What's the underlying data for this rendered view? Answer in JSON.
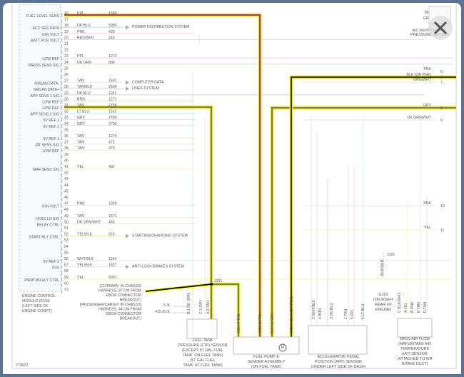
{
  "figure_id": "279622",
  "ecm": {
    "caption": [
      "ENGINE CONTROL",
      "MODULE (ECM)",
      "(LEFT SIDE OF",
      "ENGINE COMPT)"
    ]
  },
  "pins": [
    {
      "n": "16",
      "label": "FUEL LEVEL SENS",
      "color": "PPL",
      "circuit": "1589"
    },
    {
      "n": "17"
    },
    {
      "n": "18",
      "label": "ACC SER DATA",
      "color": "DK BLU",
      "circuit": "5985",
      "to": "POWER DISTRIBUTION SYSTEM"
    },
    {
      "n": "19",
      "label": "IGN VOLT",
      "color": "PNK",
      "circuit": "439"
    },
    {
      "n": "20",
      "label": "BATT POS VOLT",
      "color": "RED/WHT",
      "circuit": "440"
    },
    {
      "n": "21"
    },
    {
      "n": "22"
    },
    {
      "n": "23",
      "label": "LOW REF",
      "color": "PPL",
      "circuit": "1272"
    },
    {
      "n": "24",
      "label": "PRESS SENS SIG",
      "color": "DK GRN",
      "circuit": "890"
    },
    {
      "n": "25"
    },
    {
      "n": "26"
    },
    {
      "n": "27",
      "label": "GMLAN DATA-",
      "color": "TAN",
      "circuit": "2501",
      "to": "COMPUTER DATA"
    },
    {
      "n": "28",
      "label": "GMLAN DATA+",
      "color": "TAN/BLK",
      "circuit": "2500",
      "to": "LINES SYSTEM"
    },
    {
      "n": "29",
      "label": "APP SENS 1 SIG",
      "color": "DK BLU",
      "circuit": "1161"
    },
    {
      "n": "30",
      "label": "LOW REF",
      "color": "BRN",
      "circuit": "1271"
    },
    {
      "n": "31",
      "label": "LOW REF",
      "color": "TAN",
      "circuit": "2759"
    },
    {
      "n": "32",
      "label": "APP SENS 2 SIG",
      "color": "LT BLU",
      "circuit": "1162"
    },
    {
      "n": "33",
      "label": "5V REF 1",
      "color": "GRY",
      "circuit": "2709"
    },
    {
      "n": "34",
      "label": "5V REF 1",
      "color": "GRY",
      "circuit": "2700"
    },
    {
      "n": "35"
    },
    {
      "n": "36",
      "label": "5V REF 1",
      "color": "TAN",
      "circuit": "1274"
    },
    {
      "n": "37",
      "label": "IAT SENS SIG",
      "color": "TAN",
      "circuit": "472"
    },
    {
      "n": "38",
      "label": "LOW REF",
      "color": "TAN",
      "circuit": "470"
    },
    {
      "n": "39"
    },
    {
      "n": "40"
    },
    {
      "n": "41",
      "label": "MAF SENS SIG",
      "color": "YEL",
      "circuit": "492"
    },
    {
      "n": "42"
    },
    {
      "n": "43"
    },
    {
      "n": "44"
    },
    {
      "n": "45"
    },
    {
      "n": "46"
    },
    {
      "n": "47",
      "label": "IGN VOLT",
      "color": "PNK",
      "circuit": "1339"
    },
    {
      "n": "48"
    },
    {
      "n": "49",
      "label": "HO2S LO SIG",
      "color": "TAN",
      "circuit": "1671"
    },
    {
      "n": "50",
      "label": "RELAY CTRL",
      "color": "DK GRN/WHT",
      "circuit": "465"
    },
    {
      "n": "51"
    },
    {
      "n": "52",
      "label": "START RLY CTRL",
      "color": "YEL/BLK",
      "circuit": "625",
      "to": "STARTING/CHARGING SYSTEM"
    },
    {
      "n": "53"
    },
    {
      "n": "54"
    },
    {
      "n": "55"
    },
    {
      "n": "56",
      "label": "5V REF 2",
      "color": "WHT/BLK",
      "circuit": "1164"
    },
    {
      "n": "57",
      "label": "VSS",
      "color": "YEL/BLK",
      "circuit": "1827",
      "to": "ANTI-LOCK BRAKES SYSTEM"
    },
    {
      "n": "58"
    },
    {
      "n": "59",
      "label": "PWRTRN RLY CTRL",
      "color": "YEL",
      "circuit": "5991"
    },
    {
      "n": "60"
    },
    {
      "n": "X1"
    }
  ],
  "right_pins": [
    {
      "n": "1",
      "color": "TAN"
    },
    {
      "n": "2",
      "color": "GRY"
    },
    {
      "n": "5",
      "color": "PNK"
    },
    {
      "n": "6",
      "color": "BLK (OR PNK)"
    },
    {
      "n": "7",
      "color": "ORG/WHT"
    },
    {
      "n": "8",
      "color": "GRY"
    },
    {
      "n": "9",
      "color": "DK GRN/WHT"
    },
    {
      "n": "10",
      "color": "PNK"
    },
    {
      "n": "11",
      "color": "YEL"
    }
  ],
  "ac_sensor": [
    "A/C REFRIGERANT",
    "PRESSURE SENSOR"
  ],
  "splice": "J301",
  "splice_note": [
    "(CUTAWAY: IN CHASSIS",
    "HARNESS, 87 CM FROM",
    "EBCM CONNECTOR",
    "BREAKOUT)",
    "(PASSENGER/CARGO: IN CHASSIS",
    "HARNESS, 44 CM FROM",
    "EBCM CONNECTOR",
    "BREAKOUT)"
  ],
  "ftp": {
    "options": [
      "5.3L",
      "4.8L/6.0L"
    ],
    "pins": [
      "B  1 DK GRN",
      "C  3 GRY",
      "A  3 TAN"
    ],
    "caption": [
      "FUEL TANK",
      "PRESSURE (FTP) SENSOR",
      "(EXCEPT 57 GAL FUEL",
      "TANK: ON FUEL TANK)",
      "(57 GAL FUEL",
      "TANK: AT FUEL TANK)"
    ]
  },
  "pump": {
    "pins": [
      "NCA  F  TAN",
      "NCA  B  PPL",
      "NCA  D  GRY",
      "NCA  A  BLK (OR PNK)"
    ],
    "motor": "M",
    "caption": [
      "FUEL PUMP &",
      "SENDER ASSEMBLY",
      "(ON FUEL TANK)"
    ]
  },
  "app": {
    "pins": [
      "2  WHT/BLK",
      "4  BRN",
      "3  DK BLU",
      "1  TAN",
      "5  PPL",
      "6  LT BLU"
    ],
    "caption": [
      "ACCELERATOR PEDAL",
      "POSITION (APP) SENSOR",
      "(UNDER LEFT SIDE OF DASH)"
    ]
  },
  "ground": {
    "splice": "J101",
    "wire": "BLK/WHT",
    "name": [
      "G103",
      "(ON RIGHT",
      "REAR OF",
      "ENGINE)"
    ]
  },
  "maf": {
    "pins": [
      "C  BLK/WHT",
      "A  YEL",
      "B  PNK",
      "E  TAN",
      "D  TAN"
    ],
    "caption": [
      "MASS AIR FLOW",
      "(MAF)/INTAKE AIR",
      "TEMPERATURE",
      "(IAT) SENSOR",
      "(ATTACHED TO AIR",
      "INTAKE DUCT)"
    ]
  },
  "colors": {
    "highlight": "#ffff00",
    "wire": "#222222",
    "ppl": "#e020c0",
    "frame": "#5d7391"
  },
  "close_icon": "close-x-icon"
}
